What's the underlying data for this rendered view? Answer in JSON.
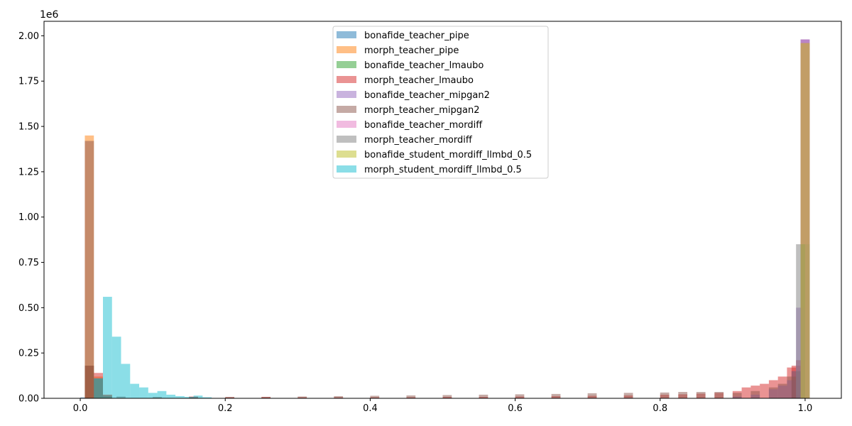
{
  "chart_data": {
    "type": "bar",
    "title": "",
    "xlabel": "",
    "ylabel": "",
    "y_multiplier_label": "1e6",
    "xlim": [
      -0.05,
      1.05
    ],
    "ylim": [
      0,
      2.08
    ],
    "x_ticks": [
      0.0,
      0.2,
      0.4,
      0.6,
      0.8,
      1.0
    ],
    "x_tick_labels": [
      "0.0",
      "0.2",
      "0.4",
      "0.6",
      "0.8",
      "1.0"
    ],
    "y_ticks": [
      0,
      0.25,
      0.5,
      0.75,
      1.0,
      1.25,
      1.5,
      1.75,
      2.0
    ],
    "y_tick_labels": [
      "0.00",
      "0.25",
      "0.50",
      "0.75",
      "1.00",
      "1.25",
      "1.50",
      "1.75",
      "2.00"
    ],
    "grid": false,
    "legend_position": "top-center",
    "bin_width": 0.0125,
    "opacity": 0.5,
    "series": [
      {
        "name": "bonafide_teacher_pipe",
        "color": "#1f77b4",
        "bins": [
          [
            0.0,
            0.005
          ],
          [
            0.9875,
            0.02
          ],
          [
            0.9938,
            1.98
          ]
        ]
      },
      {
        "name": "morph_teacher_pipe",
        "color": "#ff7f0e",
        "bins": [
          [
            0.0063,
            1.45
          ],
          [
            0.0188,
            0.12
          ],
          [
            0.0313,
            0.02
          ],
          [
            0.9938,
            1.96
          ]
        ]
      },
      {
        "name": "bonafide_teacher_lmaubo",
        "color": "#2ca02c",
        "bins": [
          [
            0.0063,
            0.18
          ],
          [
            0.0188,
            0.11
          ],
          [
            0.0313,
            0.01
          ],
          [
            0.9938,
            0.85
          ]
        ]
      },
      {
        "name": "morph_teacher_lmaubo",
        "color": "#d62728",
        "bins": [
          [
            0.0063,
            0.18
          ],
          [
            0.0188,
            0.14
          ],
          [
            0.0313,
            0.02
          ],
          [
            0.15,
            0.01
          ],
          [
            0.2,
            0.006
          ],
          [
            0.25,
            0.008
          ],
          [
            0.3,
            0.006
          ],
          [
            0.35,
            0.006
          ],
          [
            0.4,
            0.006
          ],
          [
            0.45,
            0.006
          ],
          [
            0.5,
            0.008
          ],
          [
            0.55,
            0.008
          ],
          [
            0.6,
            0.01
          ],
          [
            0.65,
            0.012
          ],
          [
            0.7,
            0.014
          ],
          [
            0.75,
            0.016
          ],
          [
            0.8,
            0.02
          ],
          [
            0.825,
            0.022
          ],
          [
            0.85,
            0.026
          ],
          [
            0.875,
            0.03
          ],
          [
            0.9,
            0.04
          ],
          [
            0.9125,
            0.06
          ],
          [
            0.925,
            0.07
          ],
          [
            0.9375,
            0.08
          ],
          [
            0.95,
            0.1
          ],
          [
            0.9625,
            0.12
          ],
          [
            0.975,
            0.17
          ],
          [
            0.9813,
            0.18
          ],
          [
            0.9875,
            0.21
          ]
        ]
      },
      {
        "name": "bonafide_teacher_mipgan2",
        "color": "#9467bd",
        "bins": [
          [
            0.9,
            0.01
          ],
          [
            0.925,
            0.02
          ],
          [
            0.95,
            0.05
          ],
          [
            0.9625,
            0.07
          ],
          [
            0.975,
            0.1
          ],
          [
            0.9813,
            0.15
          ],
          [
            0.9875,
            0.5
          ],
          [
            0.9938,
            1.98
          ]
        ]
      },
      {
        "name": "morph_teacher_mipgan2",
        "color": "#8c564b",
        "bins": [
          [
            0.0063,
            1.42
          ],
          [
            0.0188,
            0.11
          ],
          [
            0.0313,
            0.015
          ],
          [
            0.05,
            0.01
          ],
          [
            0.1,
            0.008
          ],
          [
            0.15,
            0.008
          ],
          [
            0.2,
            0.008
          ],
          [
            0.25,
            0.008
          ],
          [
            0.3,
            0.01
          ],
          [
            0.35,
            0.012
          ],
          [
            0.4,
            0.014
          ],
          [
            0.45,
            0.016
          ],
          [
            0.5,
            0.018
          ],
          [
            0.55,
            0.02
          ],
          [
            0.6,
            0.022
          ],
          [
            0.65,
            0.024
          ],
          [
            0.7,
            0.028
          ],
          [
            0.75,
            0.03
          ],
          [
            0.8,
            0.032
          ],
          [
            0.825,
            0.035
          ],
          [
            0.85,
            0.035
          ],
          [
            0.875,
            0.035
          ],
          [
            0.9,
            0.03
          ],
          [
            0.925,
            0.04
          ],
          [
            0.95,
            0.06
          ],
          [
            0.9625,
            0.08
          ],
          [
            0.975,
            0.12
          ],
          [
            0.9813,
            0.15
          ]
        ]
      },
      {
        "name": "bonafide_teacher_mordiff",
        "color": "#e377c2",
        "bins": [
          [
            0.9938,
            1.98
          ]
        ]
      },
      {
        "name": "morph_teacher_mordiff",
        "color": "#7f7f7f",
        "bins": [
          [
            0.9875,
            0.85
          ]
        ]
      },
      {
        "name": "bonafide_student_mordiff_llmbd_0.5",
        "color": "#bcbd22",
        "bins": [
          [
            0.9938,
            1.96
          ]
        ]
      },
      {
        "name": "morph_student_mordiff_llmbd_0.5",
        "color": "#17becf",
        "bins": [
          [
            0.0188,
            0.11
          ],
          [
            0.0313,
            0.56
          ],
          [
            0.0438,
            0.34
          ],
          [
            0.0563,
            0.19
          ],
          [
            0.0688,
            0.08
          ],
          [
            0.0813,
            0.06
          ],
          [
            0.0938,
            0.03
          ],
          [
            0.1063,
            0.04
          ],
          [
            0.1188,
            0.02
          ],
          [
            0.1313,
            0.012
          ],
          [
            0.1438,
            0.008
          ],
          [
            0.1563,
            0.015
          ],
          [
            0.1688,
            0.006
          ]
        ]
      }
    ]
  }
}
